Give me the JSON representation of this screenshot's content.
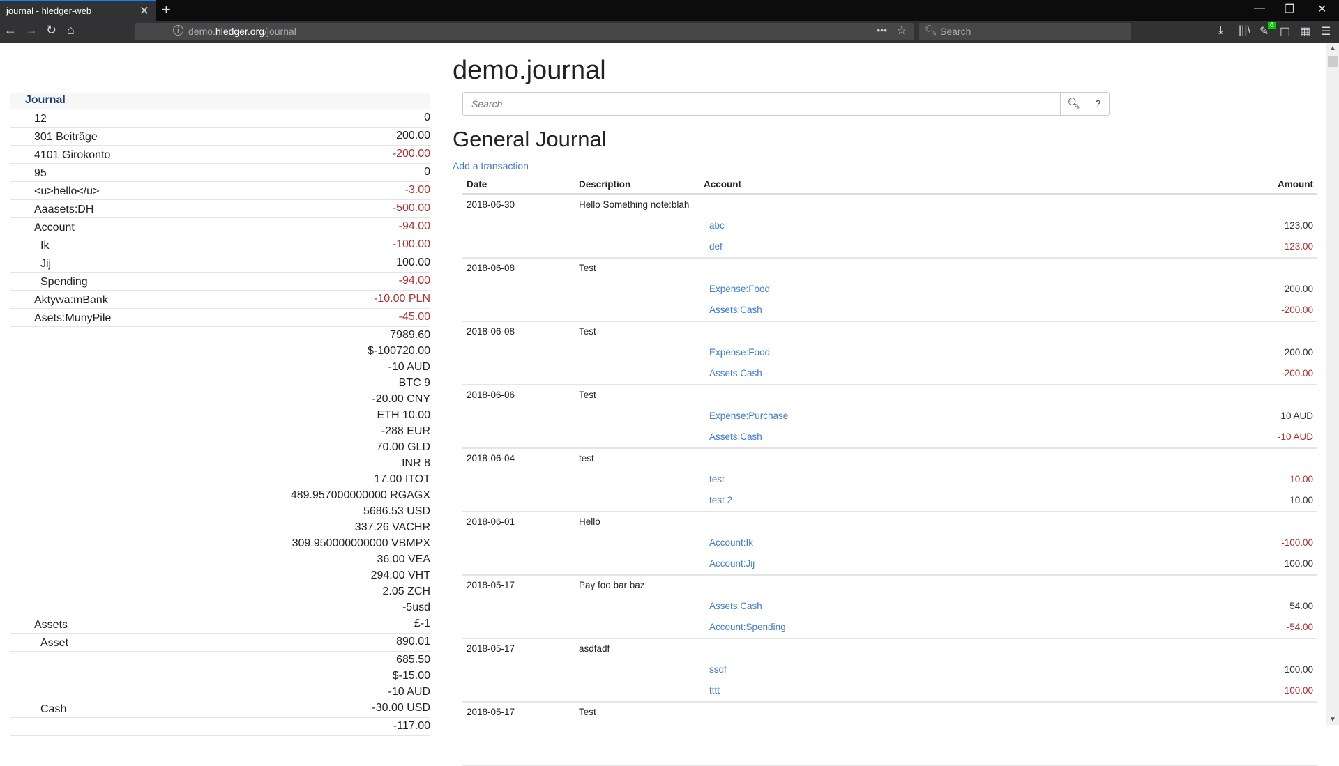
{
  "browser": {
    "tab_title": "journal - hledger-web",
    "url_domain_prefix": "demo.",
    "url_domain": "hledger.org",
    "url_path": "/journal",
    "search_placeholder": "Search",
    "notification_count": "0"
  },
  "page": {
    "title": "demo.journal",
    "search_placeholder": "Search",
    "help_label": "?",
    "heading": "General Journal",
    "add_transaction": "Add a transaction"
  },
  "sidebar": {
    "header": "Journal",
    "rows": [
      {
        "name": "12",
        "level": 0,
        "amounts": [
          {
            "v": "0",
            "neg": false
          }
        ]
      },
      {
        "name": "301 Beiträge",
        "level": 0,
        "amounts": [
          {
            "v": "200.00",
            "neg": false
          }
        ]
      },
      {
        "name": "4101 Girokonto",
        "level": 0,
        "amounts": [
          {
            "v": "-200.00",
            "neg": true
          }
        ]
      },
      {
        "name": "95",
        "level": 0,
        "amounts": [
          {
            "v": "0",
            "neg": false
          }
        ]
      },
      {
        "name": "<u>hello</u>",
        "level": 0,
        "amounts": [
          {
            "v": "-3.00",
            "neg": true
          }
        ]
      },
      {
        "name": "Aaasets:DH",
        "level": 0,
        "amounts": [
          {
            "v": "-500.00",
            "neg": true
          }
        ]
      },
      {
        "name": "Account",
        "level": 0,
        "amounts": [
          {
            "v": "-94.00",
            "neg": true
          }
        ]
      },
      {
        "name": "Ik",
        "level": 1,
        "amounts": [
          {
            "v": "-100.00",
            "neg": true
          }
        ]
      },
      {
        "name": "Jij",
        "level": 1,
        "amounts": [
          {
            "v": "100.00",
            "neg": false
          }
        ]
      },
      {
        "name": "Spending",
        "level": 1,
        "amounts": [
          {
            "v": "-94.00",
            "neg": true
          }
        ]
      },
      {
        "name": "Aktywa:mBank",
        "level": 0,
        "amounts": [
          {
            "v": "-10.00 PLN",
            "neg": true
          }
        ]
      },
      {
        "name": "Asets:MunyPile",
        "level": 0,
        "amounts": [
          {
            "v": "-45.00",
            "neg": true
          }
        ]
      },
      {
        "name": "Assets",
        "level": 0,
        "amounts": [
          {
            "v": "7989.60",
            "neg": false
          },
          {
            "v": "$-100720.00",
            "neg": false
          },
          {
            "v": "-10 AUD",
            "neg": false
          },
          {
            "v": "BTC 9",
            "neg": false
          },
          {
            "v": "-20.00 CNY",
            "neg": false
          },
          {
            "v": "ETH 10.00",
            "neg": false
          },
          {
            "v": "-288 EUR",
            "neg": false
          },
          {
            "v": "70.00 GLD",
            "neg": false
          },
          {
            "v": "INR 8",
            "neg": false
          },
          {
            "v": "17.00 ITOT",
            "neg": false
          },
          {
            "v": "489.957000000000 RGAGX",
            "neg": false
          },
          {
            "v": "5686.53 USD",
            "neg": false
          },
          {
            "v": "337.26 VACHR",
            "neg": false
          },
          {
            "v": "309.950000000000 VBMPX",
            "neg": false
          },
          {
            "v": "36.00 VEA",
            "neg": false
          },
          {
            "v": "294.00 VHT",
            "neg": false
          },
          {
            "v": "2.05 ZCH",
            "neg": false
          },
          {
            "v": "-5usd",
            "neg": false
          },
          {
            "v": "£-1",
            "neg": false
          }
        ]
      },
      {
        "name": "Asset",
        "level": 1,
        "amounts": [
          {
            "v": "890.01",
            "neg": false
          }
        ]
      },
      {
        "name": "Cash",
        "level": 1,
        "amounts": [
          {
            "v": "685.50",
            "neg": false
          },
          {
            "v": "$-15.00",
            "neg": false
          },
          {
            "v": "-10 AUD",
            "neg": false
          },
          {
            "v": "-30.00 USD",
            "neg": false
          }
        ]
      },
      {
        "name": "",
        "level": 1,
        "amounts": [
          {
            "v": "-117.00",
            "neg": false
          }
        ]
      }
    ]
  },
  "table": {
    "headers": {
      "date": "Date",
      "description": "Description",
      "account": "Account",
      "amount": "Amount"
    },
    "transactions": [
      {
        "date": "2018-06-30",
        "description": "Hello Something note:blah",
        "postings": [
          {
            "account": "abc",
            "amount": "123.00",
            "neg": false
          },
          {
            "account": "def",
            "amount": "-123.00",
            "neg": true
          }
        ]
      },
      {
        "date": "2018-06-08",
        "description": "Test",
        "postings": [
          {
            "account": "Expense:Food",
            "amount": "200.00",
            "neg": false
          },
          {
            "account": "Assets:Cash",
            "amount": "-200.00",
            "neg": true
          }
        ]
      },
      {
        "date": "2018-06-08",
        "description": "Test",
        "postings": [
          {
            "account": "Expense:Food",
            "amount": "200.00",
            "neg": false
          },
          {
            "account": "Assets:Cash",
            "amount": "-200.00",
            "neg": true
          }
        ]
      },
      {
        "date": "2018-06-06",
        "description": "Test",
        "postings": [
          {
            "account": "Expense:Purchase",
            "amount": "10 AUD",
            "neg": false
          },
          {
            "account": "Assets:Cash",
            "amount": "-10 AUD",
            "neg": true
          }
        ]
      },
      {
        "date": "2018-06-04",
        "description": "test",
        "postings": [
          {
            "account": "test",
            "amount": "-10.00",
            "neg": true
          },
          {
            "account": "test 2",
            "amount": "10.00",
            "neg": false
          }
        ]
      },
      {
        "date": "2018-06-01",
        "description": "Hello",
        "postings": [
          {
            "account": "Account:Ik",
            "amount": "-100.00",
            "neg": true
          },
          {
            "account": "Account:Jij",
            "amount": "100.00",
            "neg": false
          }
        ]
      },
      {
        "date": "2018-05-17",
        "description": "Pay foo bar baz",
        "postings": [
          {
            "account": "Assets:Cash",
            "amount": "54.00",
            "neg": false
          },
          {
            "account": "Account:Spending",
            "amount": "-54.00",
            "neg": true
          }
        ]
      },
      {
        "date": "2018-05-17",
        "description": "asdfadf",
        "postings": [
          {
            "account": "ssdf",
            "amount": "100.00",
            "neg": false
          },
          {
            "account": "tttt",
            "amount": "-100.00",
            "neg": true
          }
        ]
      },
      {
        "date": "2018-05-17",
        "description": "Test",
        "postings": []
      }
    ]
  },
  "colors": {
    "link": "#3d7bd6",
    "negative": "#b03030",
    "sidebar_header": "#1e3f78",
    "tab_accent": "#0a84ff",
    "badge": "#00cc00"
  }
}
